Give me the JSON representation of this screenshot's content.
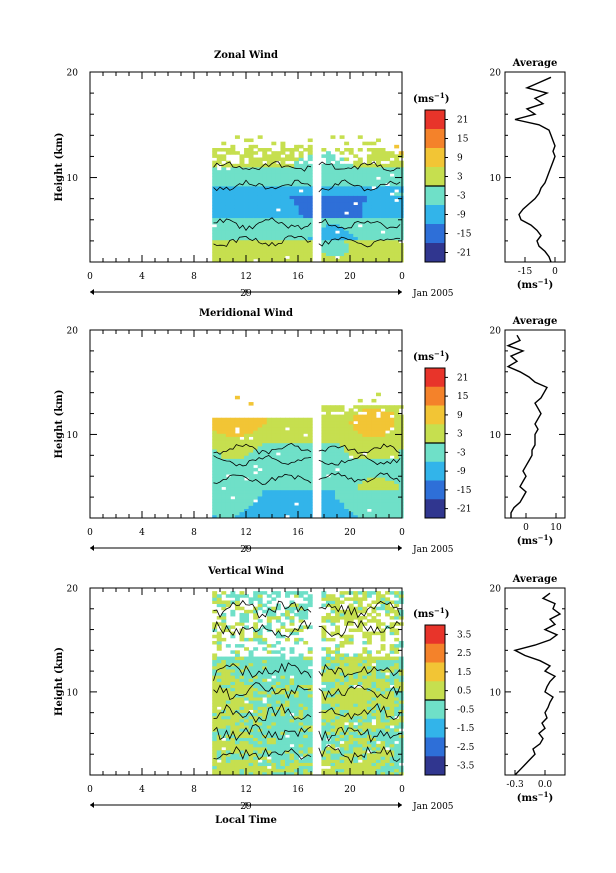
{
  "chart_data": [
    {
      "type": "heatmap",
      "title": "Zonal Wind",
      "ylabel": "Height (km)",
      "xlabel": "",
      "x_ticks": [
        "0",
        "4",
        "8",
        "12",
        "16",
        "20",
        "0"
      ],
      "y_ticks": [
        "20",
        "10"
      ],
      "ylim": [
        2,
        20
      ],
      "xlim": [
        0,
        24
      ],
      "date_tick": "29",
      "date_label": "Jan 2005",
      "colorbar": {
        "unit": "(ms",
        "unit_exp": "−1",
        "unit_close": ")",
        "ticks": [
          "21",
          "15",
          "9",
          "3",
          "-3",
          "-9",
          "-15",
          "-21"
        ],
        "range": [
          -24,
          24
        ]
      },
      "profile": {
        "title": "Average",
        "xlabel": "(ms",
        "xlabel_exp": "−1",
        "xlabel_close": ")",
        "x_ticks": [
          "-15",
          "0"
        ],
        "x_tick_values": [
          -15,
          0
        ],
        "xlim": [
          -25,
          5
        ],
        "height": [
          2.0,
          2.5,
          3.0,
          3.5,
          4.0,
          4.5,
          5.0,
          5.5,
          6.0,
          6.5,
          7.0,
          7.5,
          8.0,
          8.5,
          9.0,
          9.5,
          10.0,
          10.5,
          11.0,
          11.5,
          12.0,
          12.5,
          13.0,
          13.5,
          14.0,
          14.5,
          15.0,
          15.5,
          16.0,
          16.5,
          17.0,
          17.5,
          18.0,
          18.5,
          19.0,
          19.5
        ],
        "value": [
          -2,
          -3,
          -5,
          -8,
          -9,
          -7,
          -9,
          -12,
          -17,
          -18,
          -16,
          -13,
          -10,
          -8,
          -7,
          -5,
          -4,
          -3,
          -2,
          -1,
          0,
          -1,
          0,
          -1,
          -2,
          -3,
          -8,
          -20,
          -10,
          -14,
          -6,
          -10,
          -4,
          -14,
          -8,
          -2
        ]
      }
    },
    {
      "type": "heatmap",
      "title": "Meridional Wind",
      "ylabel": "Height (km)",
      "xlabel": "",
      "x_ticks": [
        "0",
        "4",
        "8",
        "12",
        "16",
        "20",
        "0"
      ],
      "y_ticks": [
        "20",
        "10"
      ],
      "ylim": [
        2,
        20
      ],
      "xlim": [
        0,
        24
      ],
      "date_tick": "29",
      "date_label": "Jan 2005",
      "colorbar": {
        "unit": "(ms",
        "unit_exp": "−1",
        "unit_close": ")",
        "ticks": [
          "21",
          "15",
          "9",
          "3",
          "-3",
          "-9",
          "-15",
          "-21"
        ],
        "range": [
          -24,
          24
        ]
      },
      "profile": {
        "title": "Average",
        "xlabel": "(ms",
        "xlabel_exp": "−1",
        "xlabel_close": ")",
        "x_ticks": [
          "0",
          "10"
        ],
        "x_tick_values": [
          0,
          10
        ],
        "xlim": [
          -7,
          13
        ],
        "height": [
          2.0,
          2.5,
          3.0,
          3.5,
          4.0,
          4.5,
          5.0,
          5.5,
          6.0,
          6.5,
          7.0,
          7.5,
          8.0,
          8.5,
          9.0,
          9.5,
          10.0,
          10.5,
          11.0,
          11.5,
          12.0,
          12.5,
          13.0,
          13.5,
          14.0,
          14.5,
          15.0,
          15.5,
          16.0,
          16.5,
          17.0,
          17.5,
          18.0,
          18.5,
          19.0,
          19.5
        ],
        "value": [
          -5,
          -5,
          -4,
          -2,
          -1,
          0,
          -2,
          -1,
          0,
          -1,
          0,
          1,
          2,
          2,
          3,
          3,
          3,
          4,
          3,
          4,
          5,
          4,
          3,
          5,
          6,
          7,
          3,
          1,
          -2,
          -6,
          -3,
          -5,
          -1,
          -6,
          -2,
          -3
        ]
      }
    },
    {
      "type": "heatmap",
      "title": "Vertical Wind",
      "ylabel": "Height (km)",
      "xlabel": "Local Time",
      "x_ticks": [
        "0",
        "4",
        "8",
        "12",
        "16",
        "20",
        "0"
      ],
      "y_ticks": [
        "20",
        "10"
      ],
      "ylim": [
        2,
        20
      ],
      "xlim": [
        0,
        24
      ],
      "date_tick": "29",
      "date_label": "Jan 2005",
      "colorbar": {
        "unit": "(ms",
        "unit_exp": "−1",
        "unit_close": ")",
        "ticks": [
          "3.5",
          "2.5",
          "1.5",
          "0.5",
          "-0.5",
          "-1.5",
          "-2.5",
          "-3.5"
        ],
        "range": [
          -4,
          4
        ]
      },
      "profile": {
        "title": "Average",
        "xlabel": "(ms",
        "xlabel_exp": "−1",
        "xlabel_close": ")",
        "x_ticks": [
          "-0.3",
          "0.0"
        ],
        "x_tick_values": [
          -0.3,
          0.0
        ],
        "xlim": [
          -0.4,
          0.2
        ],
        "height": [
          2.0,
          2.5,
          3.0,
          3.5,
          4.0,
          4.5,
          5.0,
          5.5,
          6.0,
          6.5,
          7.0,
          7.5,
          8.0,
          8.5,
          9.0,
          9.5,
          10.0,
          10.5,
          11.0,
          11.5,
          12.0,
          12.5,
          13.0,
          13.5,
          14.0,
          14.5,
          15.0,
          15.5,
          16.0,
          16.5,
          17.0,
          17.5,
          18.0,
          18.5,
          19.0,
          19.5
        ],
        "value": [
          -0.3,
          -0.25,
          -0.2,
          -0.15,
          -0.1,
          -0.12,
          -0.05,
          -0.02,
          -0.06,
          0.0,
          -0.03,
          0.02,
          0.0,
          0.03,
          0.05,
          0.08,
          0.0,
          0.02,
          0.05,
          0.1,
          0.0,
          0.05,
          -0.05,
          -0.2,
          -0.3,
          -0.1,
          0.05,
          0.12,
          0.0,
          0.1,
          0.05,
          0.15,
          0.08,
          0.1,
          -0.02,
          0.05
        ]
      }
    }
  ]
}
